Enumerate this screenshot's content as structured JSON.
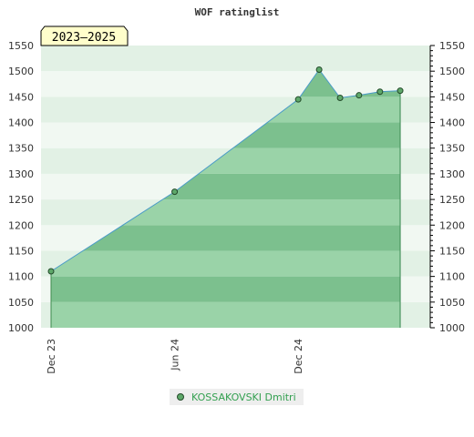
{
  "chart_data": {
    "type": "area",
    "title": "WOF ratinglist",
    "period_label": "2023–2025",
    "ylim": [
      1000,
      1550
    ],
    "yticks": [
      1000,
      1050,
      1100,
      1150,
      1200,
      1250,
      1300,
      1350,
      1400,
      1450,
      1500,
      1550
    ],
    "x_ticks": [
      {
        "date": "2023-12-01",
        "label": "Dec 23"
      },
      {
        "date": "2024-06-01",
        "label": "Jun 24"
      },
      {
        "date": "2024-12-01",
        "label": "Dec 24"
      }
    ],
    "x_range": [
      "2023-12-01",
      "2025-06-01"
    ],
    "series": [
      {
        "name": "KOSSAKOVSKI Dmitri",
        "color": "#5ea86a",
        "points": [
          {
            "x": "2023-12-01",
            "y": 1110
          },
          {
            "x": "2024-06-01",
            "y": 1265
          },
          {
            "x": "2024-12-01",
            "y": 1445
          },
          {
            "x": "2025-01-01",
            "y": 1503
          },
          {
            "x": "2025-02-01",
            "y": 1448
          },
          {
            "x": "2025-03-01",
            "y": 1453
          },
          {
            "x": "2025-04-01",
            "y": 1460
          },
          {
            "x": "2025-05-01",
            "y": 1462
          }
        ]
      }
    ],
    "legend_position": "bottom-center",
    "grid": true
  }
}
